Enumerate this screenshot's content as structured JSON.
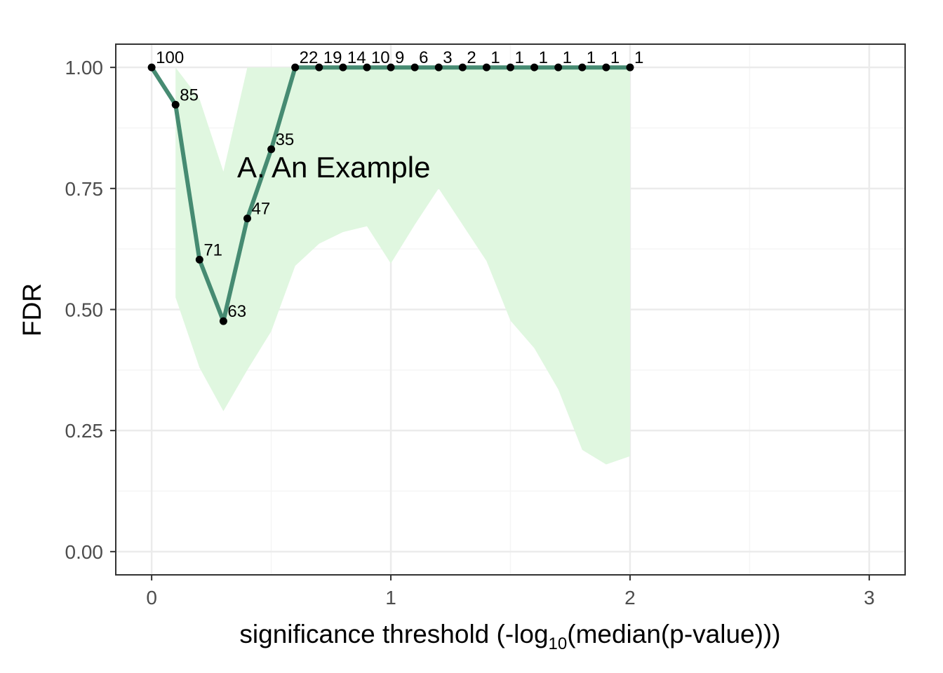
{
  "chart_data": {
    "type": "line",
    "xlabel_parts": {
      "prefix": "significance threshold (-log",
      "subscript": "10",
      "suffix": "(median(p-value)))"
    },
    "ylabel": "FDR",
    "annotation": "A. An Example",
    "xlim": [
      -0.15,
      3.15
    ],
    "ylim": [
      -0.048,
      1.048
    ],
    "x_ticks": [
      0,
      1,
      2,
      3
    ],
    "x_tick_labels": [
      "0",
      "1",
      "2",
      "3"
    ],
    "y_ticks": [
      0,
      0.25,
      0.5,
      0.75,
      1
    ],
    "y_tick_labels": [
      "0.00",
      "0.25",
      "0.50",
      "0.75",
      "1.00"
    ],
    "grid": true,
    "series": [
      {
        "x": [
          0,
          0.1,
          0.2,
          0.3,
          0.4,
          0.5,
          0.6,
          0.7,
          0.8,
          0.9,
          1.0,
          1.1,
          1.2,
          1.3,
          1.4,
          1.5,
          1.6,
          1.7,
          1.8,
          1.9,
          2.0
        ],
        "y": [
          1.0,
          0.923,
          0.603,
          0.476,
          0.688,
          0.831,
          1.0,
          1.0,
          1.0,
          1.0,
          1.0,
          1.0,
          1.0,
          1.0,
          1.0,
          1.0,
          1.0,
          1.0,
          1.0,
          1.0,
          1.0
        ],
        "labels": [
          "100",
          "85",
          "71",
          "63",
          "47",
          "35",
          "22",
          "19",
          "14",
          "10",
          "9",
          "6",
          "3",
          "2",
          "1",
          "1",
          "1",
          "1",
          "1",
          "1",
          "1"
        ]
      }
    ],
    "band": {
      "x": [
        0.1,
        0.2,
        0.3,
        0.4,
        0.5,
        0.6,
        0.7,
        0.8,
        0.9,
        1.0,
        1.1,
        1.2,
        1.3,
        1.4,
        1.5,
        1.6,
        1.7,
        1.8,
        1.9,
        2.0
      ],
      "lower": [
        0.525,
        0.38,
        0.29,
        0.375,
        0.455,
        0.59,
        0.636,
        0.66,
        0.672,
        0.595,
        0.675,
        0.75,
        0.675,
        0.6,
        0.477,
        0.42,
        0.335,
        0.21,
        0.18,
        0.197
      ],
      "upper": [
        1.0,
        0.935,
        0.785,
        1.0,
        1.0,
        1.0,
        1.0,
        1.0,
        1.0,
        1.0,
        1.0,
        1.0,
        1.0,
        1.0,
        1.0,
        1.0,
        1.0,
        1.0,
        1.0,
        1.0
      ]
    },
    "colors": {
      "line": "#468b72",
      "band": "#e0f7e0",
      "point": "#000000",
      "grid_major": "#ebebeb",
      "grid_minor": "#f5f5f5",
      "border": "#333333"
    }
  }
}
